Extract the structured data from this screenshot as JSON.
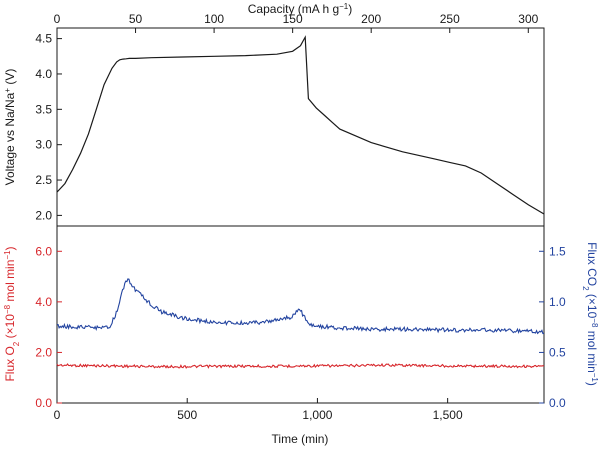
{
  "chart_data": [
    {
      "type": "line",
      "panel": "top",
      "xlabel": "Capacity (mA h g−1)",
      "ylabel": "Voltage vs Na/Na+ (V)",
      "ylabel_parts": {
        "base": "Voltage vs Na/Na",
        "sup": "+",
        "tail": " (V)"
      },
      "xlabel_parts": {
        "base": "Capacity (mA h g",
        "sup": "−1",
        "tail": ")"
      },
      "xlim": [
        0,
        310
      ],
      "ylim": [
        1.85,
        4.65
      ],
      "xticks": [
        0,
        50,
        100,
        150,
        200,
        250,
        300
      ],
      "xtick_labels": [
        "0",
        "50",
        "100",
        "150",
        "200",
        "250",
        "300"
      ],
      "yticks": [
        2.0,
        2.5,
        3.0,
        3.5,
        4.0,
        4.5
      ],
      "ytick_labels": [
        "2.0",
        "2.5",
        "3.0",
        "3.5",
        "4.0",
        "4.5"
      ],
      "grid": false,
      "series": [
        {
          "color": "#1a1a1a",
          "x": [
            0,
            5,
            10,
            15,
            20,
            25,
            30,
            35,
            38,
            40,
            42,
            44,
            46,
            50,
            60,
            80,
            100,
            120,
            140,
            150,
            155,
            157,
            158,
            160,
            165,
            170,
            175,
            180,
            200,
            220,
            240,
            250,
            260,
            270,
            280,
            290,
            300,
            310
          ],
          "y": [
            2.33,
            2.45,
            2.65,
            2.88,
            3.15,
            3.5,
            3.85,
            4.08,
            4.17,
            4.2,
            4.21,
            4.215,
            4.22,
            4.22,
            4.23,
            4.24,
            4.25,
            4.26,
            4.28,
            4.32,
            4.4,
            4.48,
            4.52,
            3.65,
            3.52,
            3.42,
            3.32,
            3.22,
            3.03,
            2.9,
            2.8,
            2.75,
            2.7,
            2.6,
            2.45,
            2.3,
            2.15,
            2.02
          ]
        }
      ]
    },
    {
      "type": "line",
      "panel": "bottom",
      "xlabel": "Time (min)",
      "ylabel_left": "Flux O2 (×10−8 mol min−1)",
      "ylabel_left_parts": {
        "a": "Flux O",
        "sub": "2",
        "b": " (×10",
        "sup1": "−8",
        "c": " mol min",
        "sup2": "−1",
        "d": ")"
      },
      "ylabel_right": "Flux CO2 (×10−8 mol min−1)",
      "ylabel_right_parts": {
        "a": "Flux CO",
        "sub": "2",
        "b": " (×10",
        "sup1": "−8",
        "c": " mol min",
        "sup2": "−1",
        "d": ")"
      },
      "xlim": [
        0,
        1870
      ],
      "ylim_left": [
        0,
        7.0
      ],
      "ylim_right": [
        0,
        1.75
      ],
      "xticks": [
        0,
        500,
        1000,
        1500
      ],
      "xtick_labels": [
        "0",
        "500",
        "1,000",
        "1,500"
      ],
      "yticks_left": [
        0,
        2,
        4,
        6
      ],
      "ytick_labels_left": [
        "0.0",
        "2.0",
        "4.0",
        "6.0"
      ],
      "yticks_right": [
        0,
        0.5,
        1.0,
        1.5
      ],
      "ytick_labels_right": [
        "0.0",
        "0.5",
        "1.0",
        "1.5"
      ],
      "grid": false,
      "series": [
        {
          "axis": "left",
          "color": "#d7262b",
          "x": [
            0,
            100,
            200,
            300,
            400,
            500,
            600,
            700,
            800,
            900,
            1000,
            1100,
            1200,
            1300,
            1400,
            1500,
            1600,
            1700,
            1800,
            1870
          ],
          "y": [
            1.5,
            1.48,
            1.47,
            1.45,
            1.44,
            1.44,
            1.45,
            1.46,
            1.45,
            1.46,
            1.47,
            1.47,
            1.5,
            1.5,
            1.48,
            1.47,
            1.46,
            1.46,
            1.45,
            1.45
          ]
        },
        {
          "axis": "right",
          "color": "#2344a0",
          "x": [
            0,
            100,
            200,
            230,
            250,
            270,
            280,
            300,
            350,
            400,
            500,
            600,
            700,
            800,
            900,
            930,
            950,
            970,
            1000,
            1100,
            1200,
            1300,
            1400,
            1500,
            1600,
            1700,
            1800,
            1870
          ],
          "y": [
            0.76,
            0.75,
            0.74,
            0.9,
            1.1,
            1.23,
            1.2,
            1.12,
            1.0,
            0.9,
            0.83,
            0.8,
            0.79,
            0.8,
            0.85,
            0.93,
            0.85,
            0.77,
            0.76,
            0.74,
            0.73,
            0.73,
            0.73,
            0.72,
            0.72,
            0.72,
            0.71,
            0.7
          ]
        }
      ]
    }
  ]
}
